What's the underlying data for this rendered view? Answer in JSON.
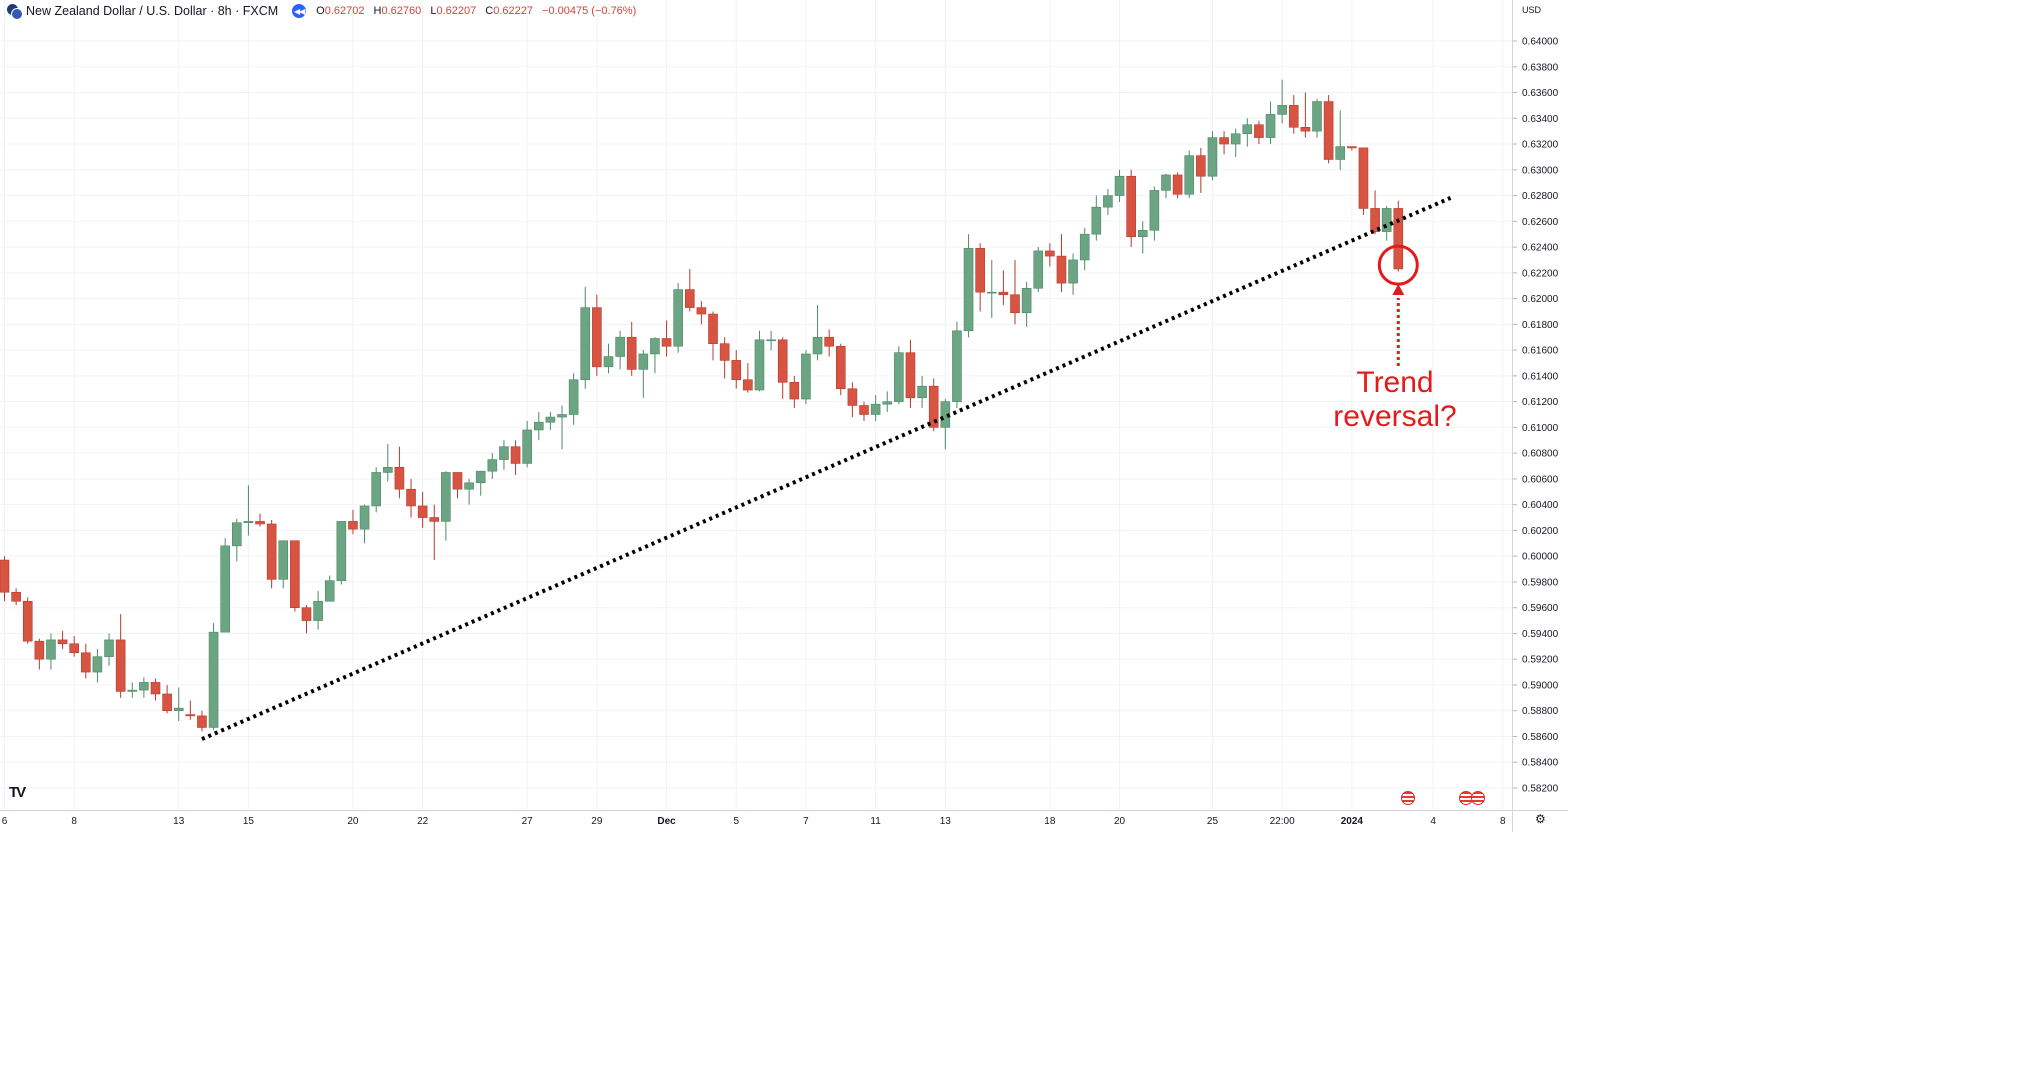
{
  "header": {
    "title": "New Zealand Dollar / U.S. Dollar · 8h · FXCM",
    "open": "0.62702",
    "high": "0.62760",
    "low": "0.62207",
    "close": "0.62227",
    "change": "−0.00475 (−0.76%)",
    "open_prefix": "O",
    "high_prefix": "H",
    "low_prefix": "L",
    "close_prefix": "C"
  },
  "currency_label": "USD",
  "logo_text": "TV",
  "annotation": {
    "line1": "Trend",
    "line2": "reversal?"
  },
  "colors": {
    "up": "#6ba583",
    "up_border": "#4d8a66",
    "down": "#d75442",
    "down_border": "#b83a2b",
    "annotation": "#e31b1b",
    "trendline": "#000000"
  },
  "chart_data": {
    "type": "candlestick",
    "symbol": "NZDUSD",
    "interval": "8h",
    "y_ticks": [
      "0.64000",
      "0.63800",
      "0.63600",
      "0.63400",
      "0.63200",
      "0.63000",
      "0.62800",
      "0.62600",
      "0.62400",
      "0.62200",
      "0.62000",
      "0.61800",
      "0.61600",
      "0.61400",
      "0.61200",
      "0.61000",
      "0.60800",
      "0.60600",
      "0.60400",
      "0.60200",
      "0.60000",
      "0.59800",
      "0.59600",
      "0.59400",
      "0.59200",
      "0.59000",
      "0.58800",
      "0.58600",
      "0.58400",
      "0.58200"
    ],
    "ylim": [
      0.5812,
      0.642
    ],
    "x_ticks": [
      {
        "label": "6",
        "i": 0
      },
      {
        "label": "8",
        "i": 6
      },
      {
        "label": "13",
        "i": 15
      },
      {
        "label": "15",
        "i": 21
      },
      {
        "label": "20",
        "i": 30
      },
      {
        "label": "22",
        "i": 36
      },
      {
        "label": "27",
        "i": 45
      },
      {
        "label": "29",
        "i": 51
      },
      {
        "label": "Dec",
        "i": 57
      },
      {
        "label": "5",
        "i": 63
      },
      {
        "label": "7",
        "i": 69
      },
      {
        "label": "11",
        "i": 75
      },
      {
        "label": "13",
        "i": 81
      },
      {
        "label": "18",
        "i": 90
      },
      {
        "label": "20",
        "i": 96
      },
      {
        "label": "25",
        "i": 104
      },
      {
        "label": "22:00",
        "i": 110
      },
      {
        "label": "2024",
        "i": 116
      },
      {
        "label": "4",
        "i": 123
      },
      {
        "label": "8",
        "i": 129
      }
    ],
    "candles": [
      [
        0.5997,
        0.6,
        0.5965,
        0.5972
      ],
      [
        0.5972,
        0.5975,
        0.5962,
        0.5965
      ],
      [
        0.5965,
        0.5968,
        0.5932,
        0.5934
      ],
      [
        0.5934,
        0.5936,
        0.5912,
        0.592
      ],
      [
        0.592,
        0.594,
        0.5912,
        0.5935
      ],
      [
        0.5935,
        0.5942,
        0.5928,
        0.5932
      ],
      [
        0.5932,
        0.5938,
        0.5922,
        0.5925
      ],
      [
        0.5925,
        0.5932,
        0.5905,
        0.591
      ],
      [
        0.591,
        0.5928,
        0.5902,
        0.5922
      ],
      [
        0.5922,
        0.594,
        0.5915,
        0.5935
      ],
      [
        0.5935,
        0.5955,
        0.589,
        0.5895
      ],
      [
        0.5895,
        0.5902,
        0.589,
        0.5896
      ],
      [
        0.5896,
        0.5906,
        0.589,
        0.5902
      ],
      [
        0.5902,
        0.5905,
        0.5888,
        0.5893
      ],
      [
        0.5893,
        0.59,
        0.5878,
        0.588
      ],
      [
        0.588,
        0.5898,
        0.5872,
        0.5882
      ],
      [
        0.5877,
        0.5888,
        0.5873,
        0.5876
      ],
      [
        0.5876,
        0.588,
        0.5864,
        0.5867
      ],
      [
        0.5867,
        0.5948,
        0.5865,
        0.5941
      ],
      [
        0.5941,
        0.6014,
        0.5941,
        0.6008
      ],
      [
        0.6008,
        0.6029,
        0.5996,
        0.6026
      ],
      [
        0.6026,
        0.6055,
        0.6016,
        0.6027
      ],
      [
        0.6027,
        0.6033,
        0.6023,
        0.6025
      ],
      [
        0.6025,
        0.6028,
        0.5975,
        0.5982
      ],
      [
        0.5982,
        0.6012,
        0.5975,
        0.6012
      ],
      [
        0.6012,
        0.6012,
        0.5957,
        0.596
      ],
      [
        0.596,
        0.5962,
        0.594,
        0.595
      ],
      [
        0.595,
        0.5973,
        0.5943,
        0.5965
      ],
      [
        0.5965,
        0.5985,
        0.5965,
        0.5981
      ],
      [
        0.5981,
        0.6027,
        0.5978,
        0.6027
      ],
      [
        0.6027,
        0.6036,
        0.6017,
        0.6021
      ],
      [
        0.6021,
        0.604,
        0.601,
        0.6039
      ],
      [
        0.6039,
        0.6069,
        0.6034,
        0.6065
      ],
      [
        0.6065,
        0.6087,
        0.6058,
        0.6069
      ],
      [
        0.6069,
        0.6085,
        0.6045,
        0.6052
      ],
      [
        0.6052,
        0.606,
        0.603,
        0.6039
      ],
      [
        0.6039,
        0.605,
        0.6022,
        0.603
      ],
      [
        0.603,
        0.604,
        0.5997,
        0.6027
      ],
      [
        0.6027,
        0.6066,
        0.6012,
        0.6065
      ],
      [
        0.6065,
        0.6065,
        0.6045,
        0.6052
      ],
      [
        0.6052,
        0.606,
        0.604,
        0.6057
      ],
      [
        0.6057,
        0.6066,
        0.6047,
        0.6066
      ],
      [
        0.6066,
        0.608,
        0.606,
        0.6075
      ],
      [
        0.6075,
        0.609,
        0.6067,
        0.6085
      ],
      [
        0.6085,
        0.609,
        0.6063,
        0.6072
      ],
      [
        0.6072,
        0.6105,
        0.6069,
        0.6098
      ],
      [
        0.6098,
        0.6112,
        0.609,
        0.6104
      ],
      [
        0.6104,
        0.6112,
        0.6098,
        0.6108
      ],
      [
        0.6108,
        0.6117,
        0.6083,
        0.611
      ],
      [
        0.611,
        0.6142,
        0.6102,
        0.6137
      ],
      [
        0.6137,
        0.6209,
        0.613,
        0.6193
      ],
      [
        0.6193,
        0.6203,
        0.614,
        0.6147
      ],
      [
        0.6147,
        0.6165,
        0.6142,
        0.6155
      ],
      [
        0.6155,
        0.6175,
        0.6145,
        0.617
      ],
      [
        0.617,
        0.6182,
        0.614,
        0.6145
      ],
      [
        0.6145,
        0.616,
        0.6123,
        0.6157
      ],
      [
        0.6157,
        0.617,
        0.6142,
        0.6169
      ],
      [
        0.6169,
        0.6183,
        0.6155,
        0.6163
      ],
      [
        0.6163,
        0.6212,
        0.6158,
        0.6207
      ],
      [
        0.6207,
        0.6223,
        0.619,
        0.6193
      ],
      [
        0.6193,
        0.6198,
        0.618,
        0.6188
      ],
      [
        0.6188,
        0.619,
        0.6152,
        0.6165
      ],
      [
        0.6165,
        0.617,
        0.6138,
        0.6152
      ],
      [
        0.6152,
        0.616,
        0.613,
        0.6137
      ],
      [
        0.6137,
        0.615,
        0.6127,
        0.6129
      ],
      [
        0.6129,
        0.6175,
        0.6128,
        0.6168
      ],
      [
        0.6168,
        0.6175,
        0.616,
        0.6168
      ],
      [
        0.6168,
        0.617,
        0.6122,
        0.6135
      ],
      [
        0.6135,
        0.614,
        0.6115,
        0.6122
      ],
      [
        0.6122,
        0.616,
        0.6118,
        0.6157
      ],
      [
        0.6157,
        0.6195,
        0.6152,
        0.617
      ],
      [
        0.617,
        0.6176,
        0.6155,
        0.6163
      ],
      [
        0.6163,
        0.6165,
        0.6125,
        0.613
      ],
      [
        0.613,
        0.6135,
        0.6108,
        0.6117
      ],
      [
        0.6117,
        0.612,
        0.6105,
        0.611
      ],
      [
        0.611,
        0.6125,
        0.6105,
        0.6118
      ],
      [
        0.6118,
        0.6128,
        0.6112,
        0.612
      ],
      [
        0.612,
        0.6163,
        0.6118,
        0.6158
      ],
      [
        0.6158,
        0.6168,
        0.6115,
        0.6123
      ],
      [
        0.6123,
        0.614,
        0.6115,
        0.6132
      ],
      [
        0.6132,
        0.6138,
        0.6097,
        0.61
      ],
      [
        0.61,
        0.6122,
        0.6083,
        0.612
      ],
      [
        0.612,
        0.6182,
        0.6115,
        0.6175
      ],
      [
        0.6175,
        0.625,
        0.617,
        0.6239
      ],
      [
        0.6239,
        0.6243,
        0.619,
        0.6205
      ],
      [
        0.6205,
        0.623,
        0.6185,
        0.6205
      ],
      [
        0.6205,
        0.6222,
        0.6195,
        0.6203
      ],
      [
        0.6203,
        0.623,
        0.618,
        0.6189
      ],
      [
        0.6189,
        0.6213,
        0.6178,
        0.6208
      ],
      [
        0.6208,
        0.624,
        0.6205,
        0.6237
      ],
      [
        0.6237,
        0.6243,
        0.6225,
        0.6233
      ],
      [
        0.6233,
        0.625,
        0.6205,
        0.6212
      ],
      [
        0.6212,
        0.6235,
        0.6203,
        0.623
      ],
      [
        0.623,
        0.6255,
        0.6222,
        0.625
      ],
      [
        0.625,
        0.628,
        0.6245,
        0.6271
      ],
      [
        0.6271,
        0.6285,
        0.6265,
        0.628
      ],
      [
        0.628,
        0.63,
        0.6275,
        0.6295
      ],
      [
        0.6295,
        0.63,
        0.624,
        0.6248
      ],
      [
        0.6248,
        0.626,
        0.6235,
        0.6253
      ],
      [
        0.6253,
        0.6287,
        0.6245,
        0.6284
      ],
      [
        0.6284,
        0.6297,
        0.6278,
        0.6296
      ],
      [
        0.6296,
        0.6298,
        0.6278,
        0.6281
      ],
      [
        0.6281,
        0.6315,
        0.6278,
        0.6311
      ],
      [
        0.6311,
        0.6317,
        0.6282,
        0.6295
      ],
      [
        0.6295,
        0.633,
        0.6292,
        0.6325
      ],
      [
        0.6325,
        0.633,
        0.6312,
        0.632
      ],
      [
        0.632,
        0.6332,
        0.631,
        0.6328
      ],
      [
        0.6328,
        0.634,
        0.6318,
        0.6335
      ],
      [
        0.6335,
        0.6338,
        0.632,
        0.6325
      ],
      [
        0.6325,
        0.6353,
        0.632,
        0.6343
      ],
      [
        0.6343,
        0.637,
        0.6336,
        0.635
      ],
      [
        0.635,
        0.6358,
        0.6328,
        0.6333
      ],
      [
        0.6333,
        0.636,
        0.6325,
        0.633
      ],
      [
        0.633,
        0.6355,
        0.6325,
        0.6353
      ],
      [
        0.6353,
        0.6358,
        0.6305,
        0.6308
      ],
      [
        0.6308,
        0.6346,
        0.63,
        0.6318
      ],
      [
        0.6318,
        0.6318,
        0.6315,
        0.6317
      ],
      [
        0.6317,
        0.6317,
        0.6265,
        0.627
      ],
      [
        0.627,
        0.6284,
        0.625,
        0.6252
      ],
      [
        0.6252,
        0.6272,
        0.6245,
        0.627
      ],
      [
        0.627,
        0.6276,
        0.6221,
        0.6223
      ]
    ],
    "trendline": {
      "from": {
        "i": 17,
        "price": 0.5858
      },
      "to": {
        "i": 124.5,
        "price": 0.62782
      }
    },
    "highlight": {
      "i": 120,
      "price": 0.6226
    },
    "calendar_events": [
      120,
      125,
      126
    ]
  }
}
